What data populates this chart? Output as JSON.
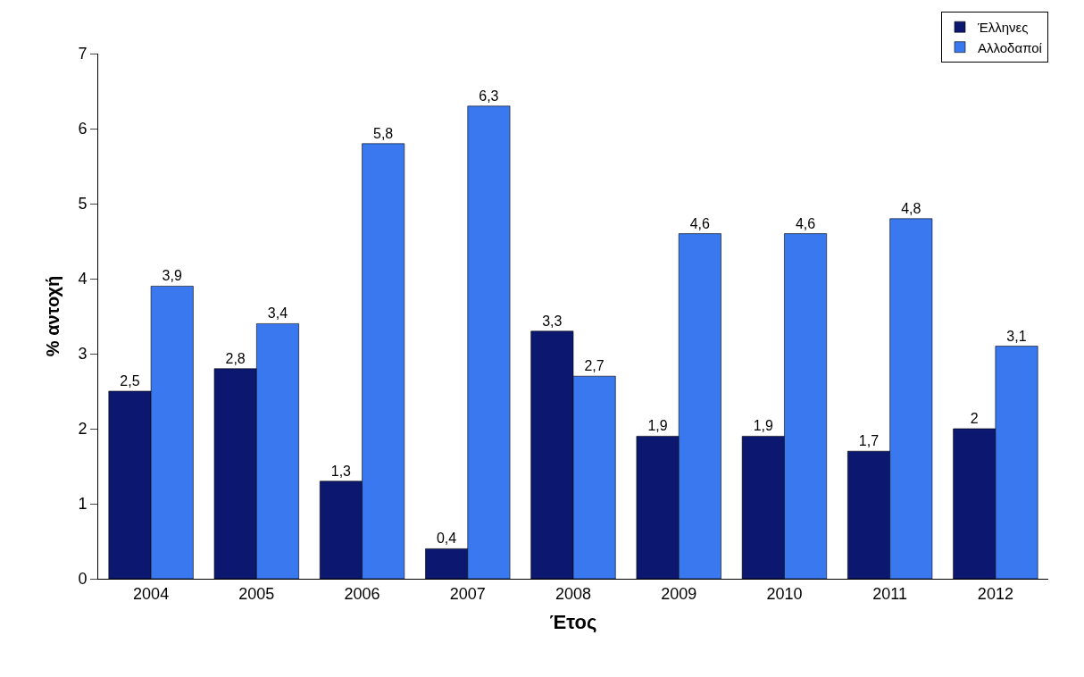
{
  "chart_data": {
    "type": "bar",
    "xlabel": "Έτος",
    "ylabel": "% αντοχή",
    "categories": [
      "2004",
      "2005",
      "2006",
      "2007",
      "2008",
      "2009",
      "2010",
      "2011",
      "2012"
    ],
    "series": [
      {
        "name": "Έλληνες",
        "color": "#0c1870",
        "values": [
          2.5,
          2.8,
          1.3,
          0.4,
          3.3,
          1.9,
          1.9,
          1.7,
          2
        ],
        "value_labels": [
          "2,5",
          "2,8",
          "1,3",
          "0,4",
          "3,3",
          "1,9",
          "1,9",
          "1,7",
          "2"
        ]
      },
      {
        "name": "Αλλοδαποί",
        "color": "#3a78f0",
        "values": [
          3.9,
          3.4,
          5.8,
          6.3,
          2.7,
          4.6,
          4.6,
          4.8,
          3.1
        ],
        "value_labels": [
          "3,9",
          "3,4",
          "5,8",
          "6,3",
          "2,7",
          "4,6",
          "4,6",
          "4,8",
          "3,1"
        ]
      }
    ],
    "ylim": [
      0,
      7
    ],
    "yticks": [
      0,
      1,
      2,
      3,
      4,
      5,
      6,
      7
    ],
    "grid": false,
    "legend": "top right"
  }
}
